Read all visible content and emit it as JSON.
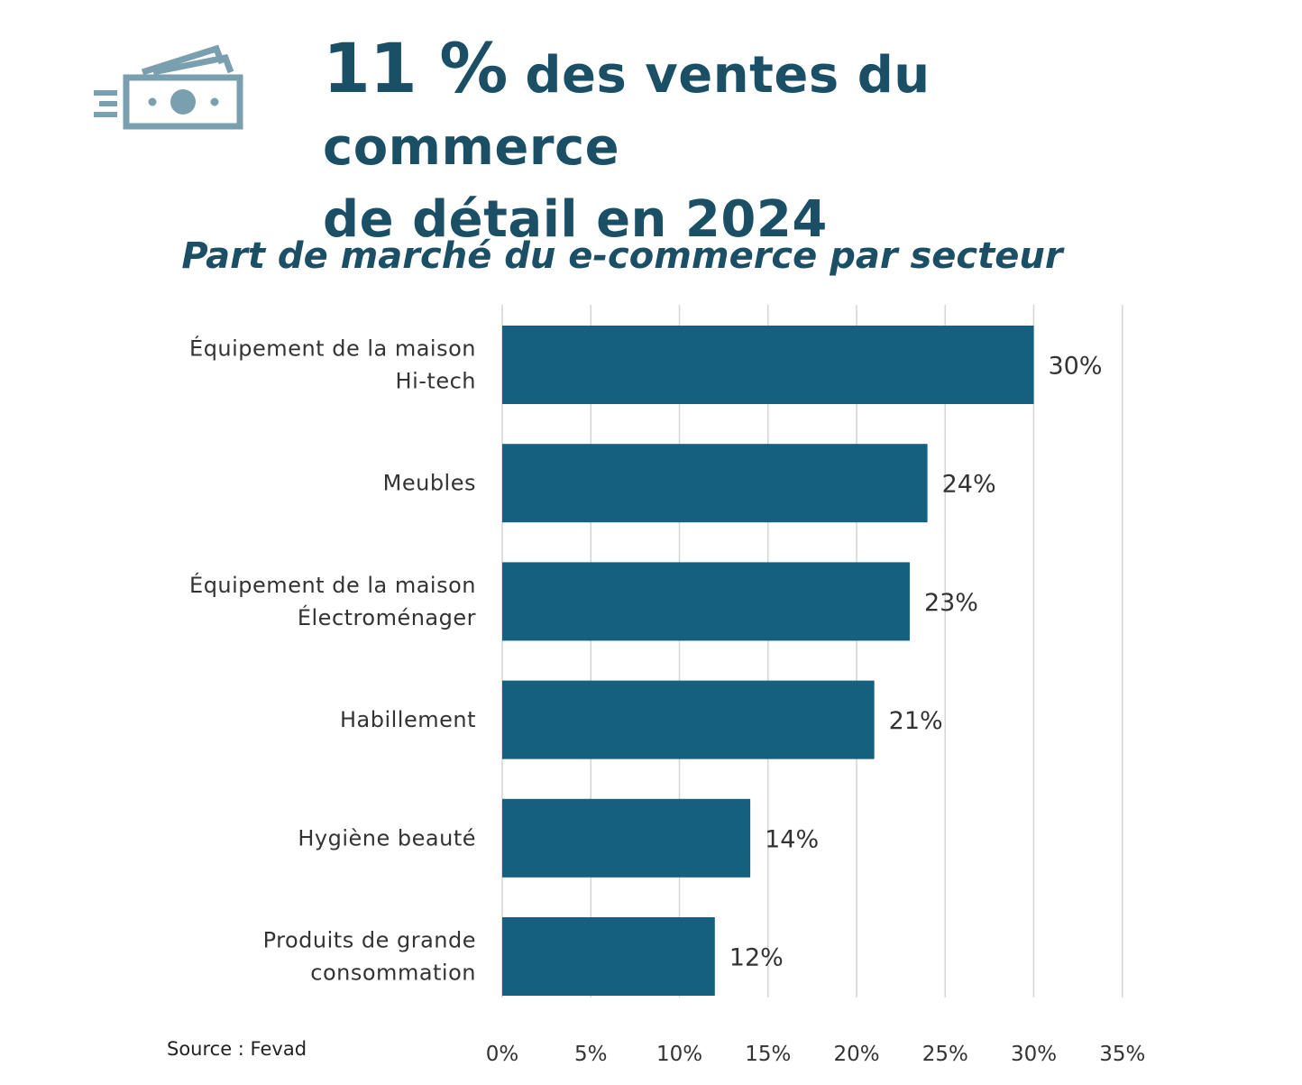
{
  "header": {
    "headline_big": "11 %",
    "headline_rest_line1": "des ventes du commerce",
    "headline_line2": "de détail en 2024",
    "icon": "money-bills-icon"
  },
  "source": "Source : Fevad",
  "colors": {
    "bar": "#16607f",
    "title": "#1b4f66",
    "icon": "#7a9fae",
    "grid": "#d4d4d4",
    "label": "#333333"
  },
  "chart_data": {
    "type": "bar",
    "orientation": "horizontal",
    "title": "Part de marché du e-commerce par secteur",
    "categories": [
      [
        "Équipement de la maison",
        "Hi-tech"
      ],
      [
        "Meubles"
      ],
      [
        "Équipement de la maison",
        "Électroménager"
      ],
      [
        "Habillement"
      ],
      [
        "Hygiène beauté"
      ],
      [
        "Produits de grande",
        "consommation"
      ]
    ],
    "values": [
      30,
      24,
      23,
      21,
      14,
      12
    ],
    "value_labels": [
      "30%",
      "24%",
      "23%",
      "21%",
      "14%",
      "12%"
    ],
    "xlim": [
      0,
      35
    ],
    "xticks": [
      0,
      5,
      10,
      15,
      20,
      25,
      30,
      35
    ],
    "xtick_labels": [
      "0%",
      "5%",
      "10%",
      "15%",
      "20%",
      "25%",
      "30%",
      "35%"
    ],
    "grid": true,
    "legend": "none",
    "xlabel": "",
    "ylabel": ""
  }
}
